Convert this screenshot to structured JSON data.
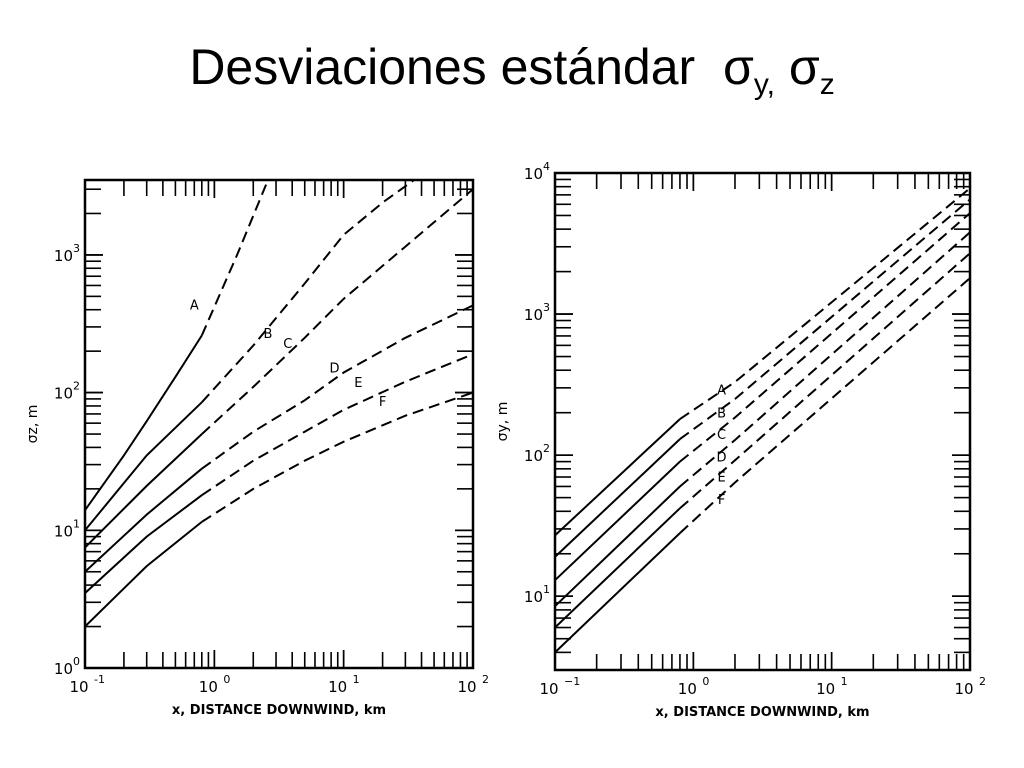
{
  "slide": {
    "title_main": "Desviaciones estándar",
    "title_sigma1": "σ",
    "title_sub1": "y,",
    "title_sigma2": "σ",
    "title_sub2": "z"
  },
  "chart_data": [
    {
      "type": "line",
      "name": "sigma_z",
      "xlabel": "x, DISTANCE DOWNWIND, km",
      "ylabel": "σz, m",
      "xscale": "log",
      "yscale": "log",
      "xlim": [
        0.1,
        100
      ],
      "ylim": [
        1,
        3500
      ],
      "x_ticks": [
        {
          "base": "10",
          "exp": "-1"
        },
        {
          "base": "10",
          "exp": "0"
        },
        {
          "base": "10",
          "exp": "1"
        },
        {
          "base": "10",
          "exp": "2"
        }
      ],
      "y_ticks": [
        {
          "base": "10",
          "exp": "0"
        },
        {
          "base": "10",
          "exp": "1"
        },
        {
          "base": "10",
          "exp": "2"
        },
        {
          "base": "10",
          "exp": "3"
        }
      ],
      "solid_until_x": 0.8,
      "series": [
        {
          "name": "A",
          "x": [
            0.1,
            0.2,
            0.3,
            0.5,
            0.8,
            1.5,
            2.6
          ],
          "y": [
            14,
            35,
            62,
            130,
            260,
            1000,
            3500
          ]
        },
        {
          "name": "B",
          "x": [
            0.1,
            0.3,
            0.8,
            2.0,
            5.0,
            10,
            20,
            35
          ],
          "y": [
            10,
            35,
            85,
            220,
            620,
            1400,
            2400,
            3500
          ]
        },
        {
          "name": "C",
          "x": [
            0.1,
            0.3,
            0.8,
            2.0,
            5.0,
            10,
            30,
            100
          ],
          "y": [
            7.5,
            21,
            50,
            110,
            250,
            480,
            1150,
            3000
          ]
        },
        {
          "name": "D",
          "x": [
            0.1,
            0.3,
            0.8,
            2.0,
            5.0,
            10,
            30,
            100
          ],
          "y": [
            5,
            13,
            28,
            52,
            88,
            140,
            250,
            430
          ]
        },
        {
          "name": "E",
          "x": [
            0.1,
            0.3,
            0.8,
            2.0,
            5.0,
            10,
            30,
            100
          ],
          "y": [
            3.5,
            9,
            18,
            32,
            52,
            75,
            120,
            190
          ]
        },
        {
          "name": "F",
          "x": [
            0.1,
            0.3,
            0.8,
            2.0,
            5.0,
            10,
            30,
            100
          ],
          "y": [
            2,
            5.5,
            11.5,
            20,
            32,
            44,
            68,
            100
          ]
        }
      ],
      "labels": [
        {
          "text": "A",
          "x": 0.7,
          "y": 400
        },
        {
          "text": "B",
          "x": 2.6,
          "y": 250
        },
        {
          "text": "C",
          "x": 3.7,
          "y": 210
        },
        {
          "text": "D",
          "x": 8.5,
          "y": 140
        },
        {
          "text": "E",
          "x": 13,
          "y": 110
        },
        {
          "text": "F",
          "x": 20,
          "y": 80
        }
      ]
    },
    {
      "type": "line",
      "name": "sigma_y",
      "xlabel": "x, DISTANCE DOWNWIND, km",
      "ylabel": "σy, m",
      "xscale": "log",
      "yscale": "log",
      "xlim": [
        0.1,
        100
      ],
      "ylim": [
        3,
        10000
      ],
      "x_ticks": [
        {
          "base": "10",
          "exp": "−1"
        },
        {
          "base": "10",
          "exp": "0"
        },
        {
          "base": "10",
          "exp": "1"
        },
        {
          "base": "10",
          "exp": "2"
        }
      ],
      "y_ticks": [
        {
          "base": "10",
          "exp": "1"
        },
        {
          "base": "10",
          "exp": "2"
        },
        {
          "base": "10",
          "exp": "3"
        },
        {
          "base": "10",
          "exp": "4"
        }
      ],
      "solid_until_x": 0.8,
      "series": [
        {
          "name": "A",
          "x": [
            0.1,
            0.8,
            2.0,
            100
          ],
          "y": [
            27,
            180,
            330,
            7800
          ]
        },
        {
          "name": "B",
          "x": [
            0.1,
            0.8,
            2.0,
            100
          ],
          "y": [
            19,
            130,
            250,
            6500
          ]
        },
        {
          "name": "C",
          "x": [
            0.1,
            0.8,
            2.0,
            100
          ],
          "y": [
            13,
            90,
            185,
            5200
          ]
        },
        {
          "name": "D",
          "x": [
            0.1,
            0.8,
            2.0,
            100
          ],
          "y": [
            8.5,
            60,
            128,
            3800
          ]
        },
        {
          "name": "E",
          "x": [
            0.1,
            0.8,
            2.0,
            100
          ],
          "y": [
            6,
            42,
            92,
            2700
          ]
        },
        {
          "name": "F",
          "x": [
            0.1,
            0.8,
            2.0,
            100
          ],
          "y": [
            4,
            28,
            64,
            1800
          ]
        }
      ],
      "labels": [
        {
          "text": "A",
          "x": 1.6,
          "y": 270
        },
        {
          "text": "B",
          "x": 1.6,
          "y": 185
        },
        {
          "text": "C",
          "x": 1.6,
          "y": 130
        },
        {
          "text": "D",
          "x": 1.6,
          "y": 90
        },
        {
          "text": "E",
          "x": 1.6,
          "y": 65
        },
        {
          "text": "F",
          "x": 1.6,
          "y": 45
        }
      ]
    }
  ]
}
